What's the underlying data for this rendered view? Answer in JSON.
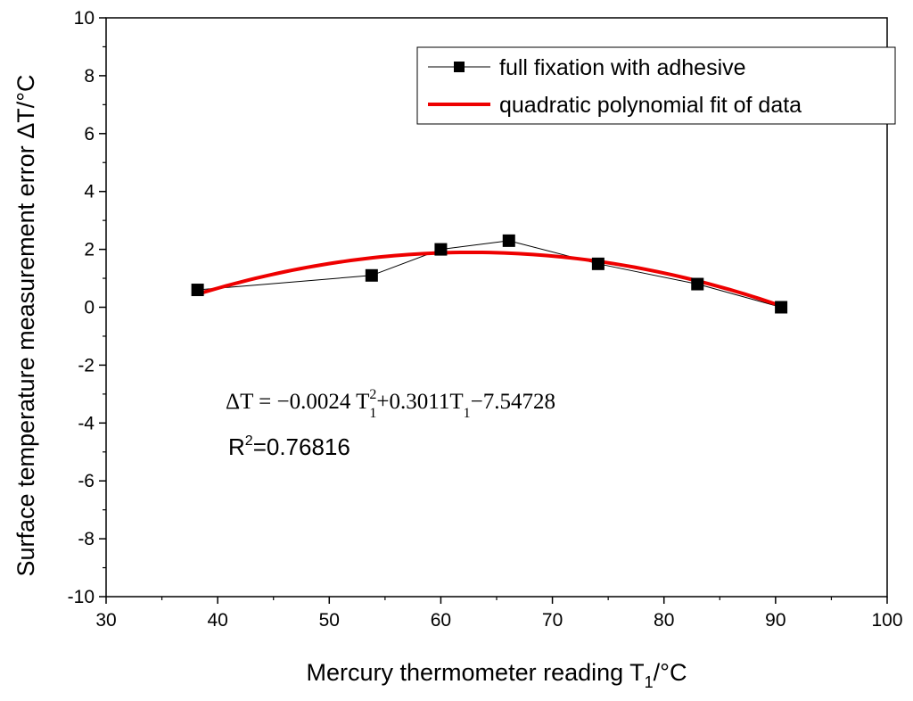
{
  "chart_data": {
    "type": "scatter",
    "xlabel": "Mercury thermometer reading T",
    "xlabel_sub": "1",
    "xlabel_unit": "/°C",
    "ylabel": "Surface temperature measurement error ΔT/°C",
    "xlim": [
      30,
      100
    ],
    "ylim": [
      -10,
      10
    ],
    "x_ticks": [
      30,
      40,
      50,
      60,
      70,
      80,
      90,
      100
    ],
    "y_ticks": [
      -10,
      -8,
      -6,
      -4,
      -2,
      0,
      2,
      4,
      6,
      8,
      10
    ],
    "grid": false,
    "legend_position": "top-right",
    "series": [
      {
        "name": "full fixation with adhesive",
        "style": "line-with-square-markers",
        "color": "#000000",
        "x": [
          38.2,
          53.8,
          60.0,
          66.1,
          74.1,
          83.0,
          90.5
        ],
        "y": [
          0.6,
          1.1,
          2.0,
          2.3,
          1.5,
          0.8,
          0.0
        ]
      },
      {
        "name": "quadratic polynomial fit of data",
        "style": "line",
        "color": "#ee0000",
        "fit": {
          "a": -0.0024,
          "b": 0.3011,
          "c": -7.54728
        },
        "x_range": [
          38.2,
          90.5
        ]
      }
    ],
    "annotations": {
      "equation": {
        "delta_t": "ΔT = −0.0024 T",
        "sup": "2",
        "sub1": "1",
        "middle": "+0.3011T",
        "sub2": "1",
        "tail": "−7.54728"
      },
      "r2": {
        "r": "R",
        "sup": "2",
        "value": "=0.76816"
      }
    }
  }
}
